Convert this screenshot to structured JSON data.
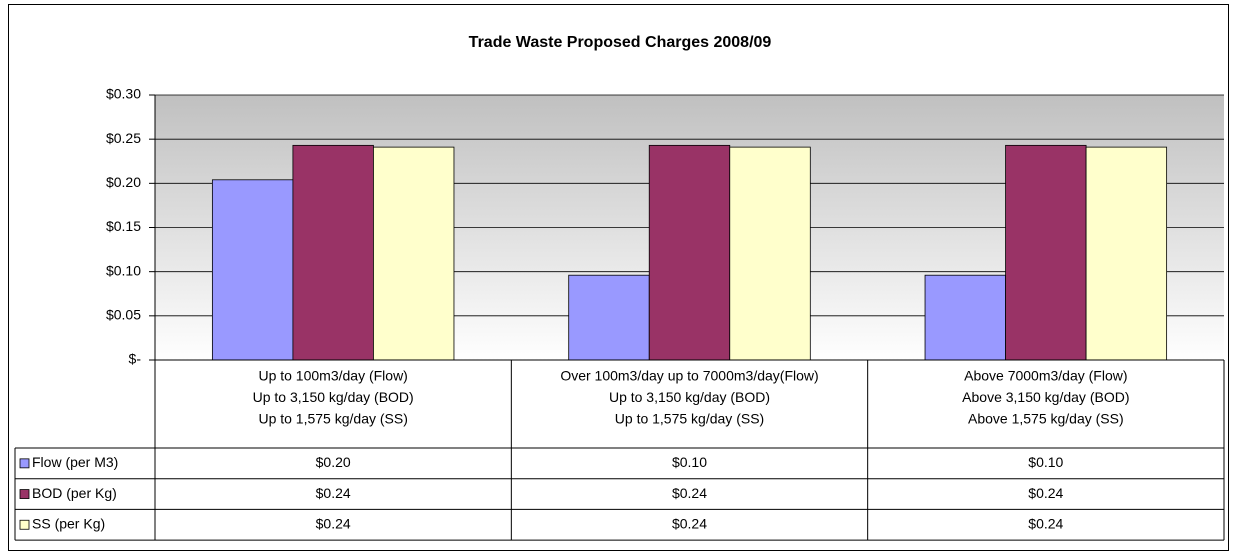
{
  "chart_data": {
    "type": "bar",
    "title": "Trade Waste Proposed Charges 2008/09",
    "categories": [
      [
        "Up to 100m3/day (Flow)",
        "Up to 3,150 kg/day (BOD)",
        "Up to 1,575 kg/day (SS)"
      ],
      [
        "Over 100m3/day up to 7000m3/day(Flow)",
        "Up to 3,150 kg/day (BOD)",
        "Up to 1,575 kg/day (SS)"
      ],
      [
        "Above 7000m3/day (Flow)",
        "Above 3,150 kg/day (BOD)",
        "Above 1,575 kg/day (SS)"
      ]
    ],
    "series": [
      {
        "name": "Flow (per M3)",
        "color": "#9999ff",
        "values": [
          0.204,
          0.096,
          0.096
        ],
        "value_labels": [
          "$0.20",
          "$0.10",
          "$0.10"
        ]
      },
      {
        "name": "BOD (per Kg)",
        "color": "#993366",
        "values": [
          0.243,
          0.243,
          0.243
        ],
        "value_labels": [
          "$0.24",
          "$0.24",
          "$0.24"
        ]
      },
      {
        "name": "SS (per Kg)",
        "color": "#ffffcc",
        "values": [
          0.241,
          0.241,
          0.241
        ],
        "value_labels": [
          "$0.24",
          "$0.24",
          "$0.24"
        ]
      }
    ],
    "ylim": [
      0,
      0.3
    ],
    "yticks": [
      {
        "value": 0,
        "label": "$-"
      },
      {
        "value": 0.05,
        "label": "$0.05"
      },
      {
        "value": 0.1,
        "label": "$0.10"
      },
      {
        "value": 0.15,
        "label": "$0.15"
      },
      {
        "value": 0.2,
        "label": "$0.20"
      },
      {
        "value": 0.25,
        "label": "$0.25"
      },
      {
        "value": 0.3,
        "label": "$0.30"
      }
    ],
    "grid": true
  }
}
